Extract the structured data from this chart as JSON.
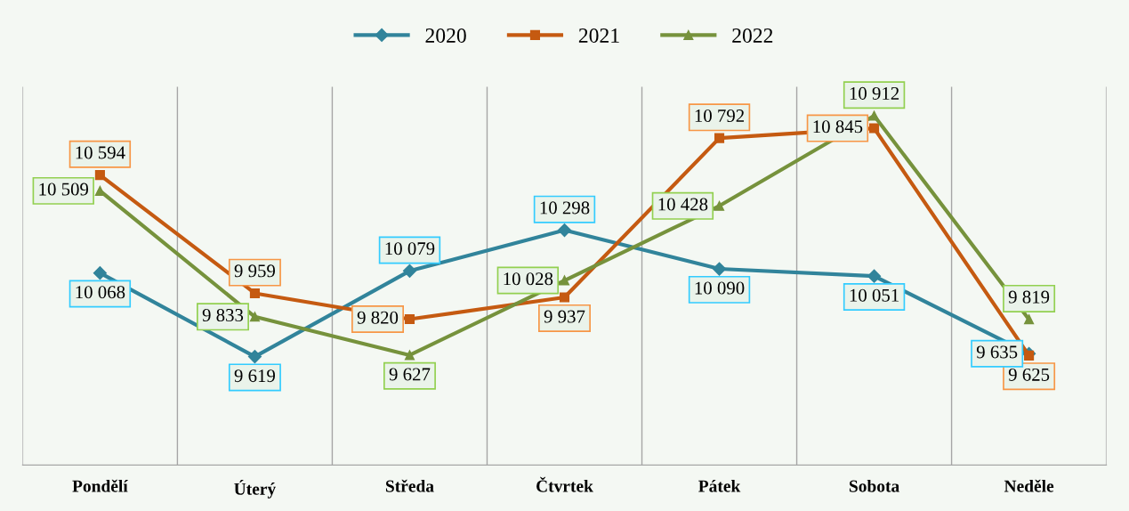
{
  "chart_data": {
    "type": "line",
    "categories": [
      "Pondělí",
      "Úterý",
      "Středa",
      "Čtvrtek",
      "Pátek",
      "Sobota",
      "Neděle"
    ],
    "series": [
      {
        "name": "2020",
        "color": "#31849b",
        "marker": "diamond",
        "values": [
          10068,
          9619,
          10079,
          10298,
          10090,
          10051,
          9635
        ]
      },
      {
        "name": "2021",
        "color": "#c55a11",
        "marker": "square",
        "values": [
          10594,
          9959,
          9820,
          9937,
          10792,
          10845,
          9625
        ]
      },
      {
        "name": "2022",
        "color": "#76923c",
        "marker": "triangle",
        "values": [
          10509,
          9833,
          9627,
          10028,
          10428,
          10912,
          9819
        ]
      }
    ],
    "data_labels": true,
    "legend": "top",
    "grid": "x",
    "tick_labels": "x",
    "line_style": "solid"
  }
}
